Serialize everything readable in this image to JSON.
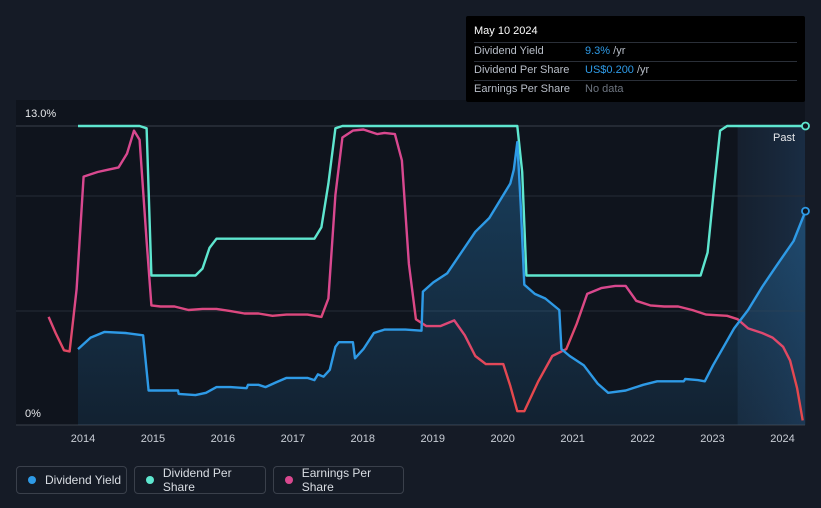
{
  "tooltip": {
    "date": "May 10 2024",
    "rows": [
      {
        "label": "Dividend Yield",
        "value": "9.3%",
        "unit": " /yr"
      },
      {
        "label": "Dividend Per Share",
        "value": "US$0.200",
        "unit": " /yr"
      },
      {
        "label": "Earnings Per Share",
        "value": "No data"
      }
    ]
  },
  "past_label": "Past",
  "legend": [
    {
      "label": "Dividend Yield",
      "color": "#2e9ae6"
    },
    {
      "label": "Dividend Per Share",
      "color": "#5ee6cf"
    },
    {
      "label": "Earnings Per Share",
      "color": "#d9488f"
    }
  ],
  "chart_data": {
    "type": "line",
    "title": "",
    "xlabel": "",
    "ylabel": "",
    "y_tick_labels": [
      "13.0%",
      "0%"
    ],
    "ylim": [
      0,
      13
    ],
    "xlim": [
      2013.4,
      2024.35
    ],
    "x_tick_labels": [
      "2014",
      "2015",
      "2016",
      "2017",
      "2018",
      "2019",
      "2020",
      "2021",
      "2022",
      "2023",
      "2024"
    ],
    "forecast_region_start": 2023.35,
    "colors": {
      "yield": "#2e9ae6",
      "dps": "#5ee6cf",
      "eps": "#d9488f",
      "eps_low": "#e5484d"
    },
    "series": [
      {
        "name": "Dividend Yield",
        "unit": "%",
        "points": [
          [
            2013.92,
            3.3
          ],
          [
            2014.1,
            3.8
          ],
          [
            2014.3,
            4.05
          ],
          [
            2014.6,
            4.0
          ],
          [
            2014.85,
            3.9
          ],
          [
            2014.93,
            1.5
          ],
          [
            2015.0,
            1.5
          ],
          [
            2015.2,
            1.5
          ],
          [
            2015.35,
            1.5
          ],
          [
            2015.36,
            1.35
          ],
          [
            2015.6,
            1.3
          ],
          [
            2015.75,
            1.4
          ],
          [
            2015.9,
            1.65
          ],
          [
            2016.1,
            1.65
          ],
          [
            2016.33,
            1.6
          ],
          [
            2016.35,
            1.75
          ],
          [
            2016.5,
            1.75
          ],
          [
            2016.6,
            1.65
          ],
          [
            2016.75,
            1.85
          ],
          [
            2016.9,
            2.05
          ],
          [
            2017.2,
            2.05
          ],
          [
            2017.3,
            1.95
          ],
          [
            2017.35,
            2.2
          ],
          [
            2017.43,
            2.1
          ],
          [
            2017.52,
            2.4
          ],
          [
            2017.6,
            3.4
          ],
          [
            2017.65,
            3.6
          ],
          [
            2017.85,
            3.6
          ],
          [
            2017.88,
            2.9
          ],
          [
            2018.0,
            3.3
          ],
          [
            2018.15,
            4.0
          ],
          [
            2018.3,
            4.15
          ],
          [
            2018.6,
            4.15
          ],
          [
            2018.83,
            4.1
          ],
          [
            2018.85,
            5.8
          ],
          [
            2019.0,
            6.2
          ],
          [
            2019.2,
            6.6
          ],
          [
            2019.4,
            7.5
          ],
          [
            2019.6,
            8.4
          ],
          [
            2019.8,
            9.0
          ],
          [
            2020.0,
            10.0
          ],
          [
            2020.1,
            10.5
          ],
          [
            2020.15,
            11.1
          ],
          [
            2020.2,
            12.3
          ],
          [
            2020.25,
            9.5
          ],
          [
            2020.3,
            6.1
          ],
          [
            2020.45,
            5.7
          ],
          [
            2020.6,
            5.5
          ],
          [
            2020.8,
            5.0
          ],
          [
            2020.83,
            3.3
          ],
          [
            2020.95,
            3.0
          ],
          [
            2021.15,
            2.6
          ],
          [
            2021.35,
            1.8
          ],
          [
            2021.5,
            1.4
          ],
          [
            2021.75,
            1.5
          ],
          [
            2022.0,
            1.75
          ],
          [
            2022.2,
            1.9
          ],
          [
            2022.4,
            1.9
          ],
          [
            2022.58,
            1.9
          ],
          [
            2022.6,
            2.0
          ],
          [
            2022.78,
            1.95
          ],
          [
            2022.88,
            1.9
          ],
          [
            2023.0,
            2.6
          ],
          [
            2023.15,
            3.4
          ],
          [
            2023.3,
            4.2
          ],
          [
            2023.5,
            5.0
          ],
          [
            2023.7,
            6.0
          ],
          [
            2023.9,
            6.9
          ],
          [
            2024.15,
            8.0
          ],
          [
            2024.32,
            9.3
          ]
        ]
      },
      {
        "name": "Dividend Per Share",
        "unit": "relative level",
        "points": [
          [
            2013.92,
            13.0
          ],
          [
            2014.8,
            13.0
          ],
          [
            2014.9,
            12.9
          ],
          [
            2014.97,
            6.5
          ],
          [
            2015.6,
            6.5
          ],
          [
            2015.7,
            6.8
          ],
          [
            2015.8,
            7.7
          ],
          [
            2015.9,
            8.1
          ],
          [
            2017.3,
            8.1
          ],
          [
            2017.4,
            8.6
          ],
          [
            2017.5,
            10.5
          ],
          [
            2017.6,
            12.9
          ],
          [
            2017.7,
            13.0
          ],
          [
            2020.2,
            13.0
          ],
          [
            2020.27,
            11.0
          ],
          [
            2020.33,
            6.5
          ],
          [
            2022.82,
            6.5
          ],
          [
            2022.92,
            7.5
          ],
          [
            2023.02,
            10.5
          ],
          [
            2023.1,
            12.8
          ],
          [
            2023.2,
            13.0
          ],
          [
            2024.32,
            13.0
          ]
        ]
      },
      {
        "name": "Earnings Per Share",
        "unit": "relative level",
        "points": [
          [
            2013.5,
            4.7
          ],
          [
            2013.6,
            4.0
          ],
          [
            2013.72,
            3.25
          ],
          [
            2013.8,
            3.2
          ],
          [
            2013.9,
            5.9
          ],
          [
            2014.0,
            10.8
          ],
          [
            2014.2,
            11.0
          ],
          [
            2014.35,
            11.1
          ],
          [
            2014.5,
            11.2
          ],
          [
            2014.62,
            11.8
          ],
          [
            2014.72,
            12.8
          ],
          [
            2014.8,
            12.4
          ],
          [
            2014.9,
            8.0
          ],
          [
            2014.97,
            5.2
          ],
          [
            2015.1,
            5.15
          ],
          [
            2015.3,
            5.15
          ],
          [
            2015.5,
            5.0
          ],
          [
            2015.7,
            5.05
          ],
          [
            2015.9,
            5.05
          ],
          [
            2016.1,
            4.95
          ],
          [
            2016.3,
            4.85
          ],
          [
            2016.5,
            4.85
          ],
          [
            2016.7,
            4.75
          ],
          [
            2016.9,
            4.8
          ],
          [
            2017.2,
            4.8
          ],
          [
            2017.4,
            4.7
          ],
          [
            2017.5,
            5.5
          ],
          [
            2017.6,
            10.0
          ],
          [
            2017.7,
            12.5
          ],
          [
            2017.85,
            12.8
          ],
          [
            2018.0,
            12.85
          ],
          [
            2018.2,
            12.65
          ],
          [
            2018.3,
            12.7
          ],
          [
            2018.45,
            12.65
          ],
          [
            2018.55,
            11.5
          ],
          [
            2018.65,
            7.0
          ],
          [
            2018.75,
            4.6
          ],
          [
            2018.9,
            4.3
          ],
          [
            2019.1,
            4.3
          ],
          [
            2019.3,
            4.55
          ],
          [
            2019.45,
            3.9
          ],
          [
            2019.6,
            3.0
          ],
          [
            2019.75,
            2.65
          ],
          [
            2020.0,
            2.65
          ],
          [
            2020.1,
            1.7
          ],
          [
            2020.2,
            0.6
          ],
          [
            2020.3,
            0.6
          ],
          [
            2020.5,
            1.9
          ],
          [
            2020.7,
            3.0
          ],
          [
            2020.9,
            3.3
          ],
          [
            2021.05,
            4.4
          ],
          [
            2021.2,
            5.7
          ],
          [
            2021.4,
            5.95
          ],
          [
            2021.6,
            6.05
          ],
          [
            2021.75,
            6.05
          ],
          [
            2021.9,
            5.4
          ],
          [
            2022.1,
            5.2
          ],
          [
            2022.3,
            5.15
          ],
          [
            2022.5,
            5.15
          ],
          [
            2022.7,
            5.0
          ],
          [
            2022.9,
            4.8
          ],
          [
            2023.2,
            4.75
          ],
          [
            2023.35,
            4.6
          ],
          [
            2023.5,
            4.2
          ],
          [
            2023.7,
            4.0
          ],
          [
            2023.85,
            3.8
          ],
          [
            2024.0,
            3.4
          ],
          [
            2024.1,
            2.8
          ],
          [
            2024.2,
            1.6
          ],
          [
            2024.28,
            0.2
          ]
        ]
      }
    ]
  }
}
